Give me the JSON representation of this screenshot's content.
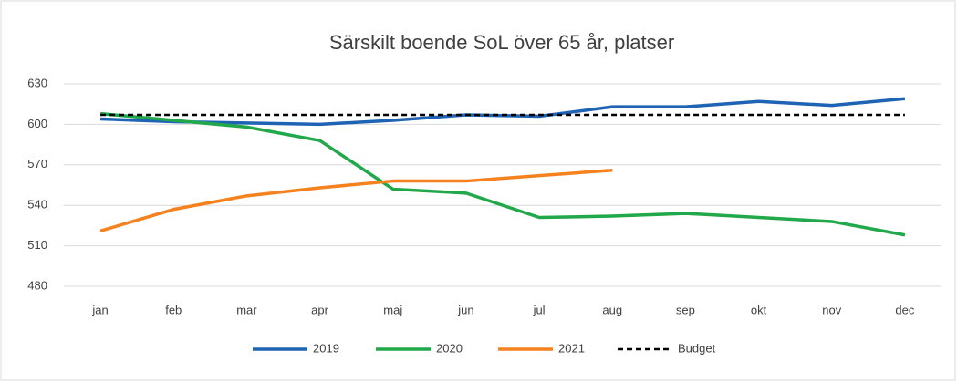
{
  "chart_data": {
    "type": "line",
    "title": "Särskilt boende SoL över 65 år, platser",
    "categories": [
      "jan",
      "feb",
      "mar",
      "apr",
      "maj",
      "jun",
      "jul",
      "aug",
      "sep",
      "okt",
      "nov",
      "dec"
    ],
    "series": [
      {
        "name": "2019",
        "color": "#1f64b4",
        "dash": false,
        "values": [
          604,
          602,
          601,
          600,
          603,
          607,
          606,
          613,
          613,
          617,
          614,
          619
        ]
      },
      {
        "name": "2020",
        "color": "#21a84a",
        "dash": false,
        "values": [
          608,
          603,
          598,
          588,
          552,
          549,
          531,
          532,
          534,
          531,
          528,
          518
        ]
      },
      {
        "name": "2021",
        "color": "#f5821f",
        "dash": false,
        "values": [
          521,
          537,
          547,
          553,
          558,
          558,
          562,
          566,
          null,
          null,
          null,
          null
        ]
      },
      {
        "name": "Budget",
        "color": "#000000",
        "dash": true,
        "values": [
          607,
          607,
          607,
          607,
          607,
          607,
          607,
          607,
          607,
          607,
          607,
          607
        ]
      }
    ],
    "ylim": [
      480,
      630
    ],
    "yticks": [
      480,
      510,
      540,
      570,
      600,
      630
    ],
    "grid": true,
    "legend": "bottom"
  }
}
